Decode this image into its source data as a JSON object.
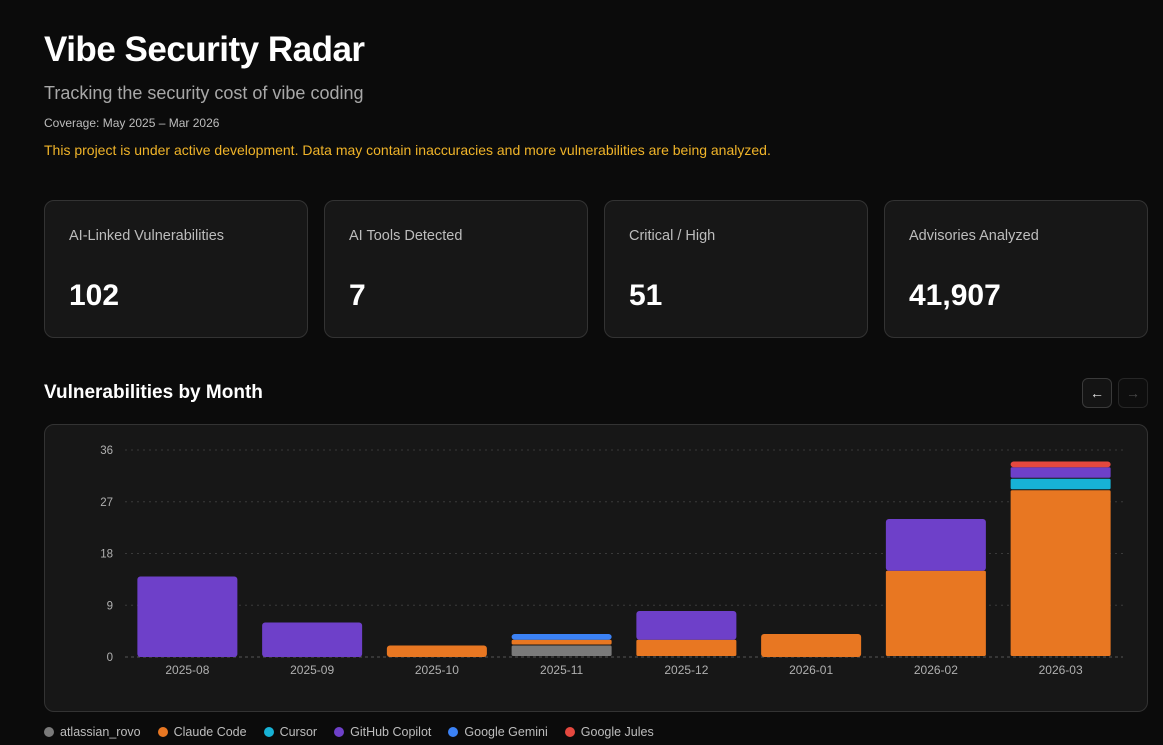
{
  "header": {
    "title": "Vibe Security Radar",
    "subtitle": "Tracking the security cost of vibe coding",
    "coverage": "Coverage: May 2025 – Mar 2026",
    "warning": "This project is under active development. Data may contain inaccuracies and more vulnerabilities are being analyzed."
  },
  "stats": [
    {
      "label": "AI-Linked Vulnerabilities",
      "value": "102"
    },
    {
      "label": "AI Tools Detected",
      "value": "7"
    },
    {
      "label": "Critical / High",
      "value": "51"
    },
    {
      "label": "Advisories Analyzed",
      "value": "41,907"
    }
  ],
  "section": {
    "title": "Vulnerabilities by Month",
    "prev_icon": "arrow-left-icon",
    "next_icon": "arrow-right-icon",
    "prev_glyph": "←",
    "next_glyph": "→"
  },
  "colors": {
    "atlassian_rovo": "#7a7a7a",
    "Claude Code": "#e87722",
    "Cursor": "#17b2d6",
    "GitHub Copilot": "#6e40c9",
    "Google Gemini": "#3b82f6",
    "Google Jules": "#e5483f"
  },
  "chart_data": {
    "type": "bar",
    "stacked": true,
    "categories": [
      "2025-08",
      "2025-09",
      "2025-10",
      "2025-11",
      "2025-12",
      "2026-01",
      "2026-02",
      "2026-03"
    ],
    "series": [
      {
        "name": "atlassian_rovo",
        "values": [
          0,
          0,
          0,
          2,
          0,
          0,
          0,
          0
        ]
      },
      {
        "name": "Claude Code",
        "values": [
          0,
          0,
          2,
          1,
          3,
          4,
          15,
          29
        ]
      },
      {
        "name": "Cursor",
        "values": [
          0,
          0,
          0,
          0,
          0,
          0,
          0,
          2
        ]
      },
      {
        "name": "GitHub Copilot",
        "values": [
          14,
          6,
          0,
          0,
          5,
          0,
          9,
          2
        ]
      },
      {
        "name": "Google Gemini",
        "values": [
          0,
          0,
          0,
          1,
          0,
          0,
          0,
          0
        ]
      },
      {
        "name": "Google Jules",
        "values": [
          0,
          0,
          0,
          0,
          0,
          0,
          0,
          1
        ]
      }
    ],
    "yticks": [
      0,
      9,
      18,
      27,
      36
    ],
    "ylim": [
      0,
      36
    ],
    "grid": true,
    "legend_position": "bottom-left"
  }
}
